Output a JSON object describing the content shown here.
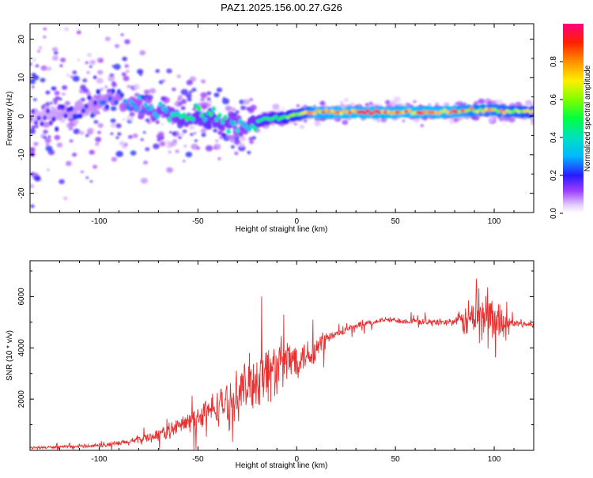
{
  "title": "PAZ1.2025.156.00.27.G26",
  "chart_data": [
    {
      "type": "heatmap",
      "xlabel": "Height of straight line (km)",
      "ylabel": "Frequency (Hz)",
      "xlim": [
        -135,
        120
      ],
      "ylim": [
        -25,
        24
      ],
      "xticks": [
        -100,
        -50,
        0,
        50,
        100
      ],
      "yticks": [
        -20,
        -10,
        0,
        10,
        20
      ],
      "colorbar": {
        "label": "Normalized spectral amplitude",
        "range": [
          0,
          1
        ],
        "ticks": [
          "0.0",
          "0.2",
          "0.4",
          "0.6",
          "0.8"
        ],
        "tick_values": [
          0,
          0.2,
          0.4,
          0.6,
          0.8
        ]
      },
      "ridge": {
        "x": [
          -135,
          -120,
          -105,
          -95,
          -85,
          -75,
          -65,
          -55,
          -45,
          -35,
          -28,
          -24,
          -18,
          -12,
          -6,
          0,
          5,
          10,
          30,
          60,
          80,
          90,
          100,
          110,
          120
        ],
        "freq": [
          0,
          0.5,
          2,
          4.5,
          3.5,
          1.5,
          1,
          0,
          -0.5,
          -1.5,
          -2.5,
          -2.5,
          -1,
          -0.5,
          -0.5,
          0.5,
          1,
          1,
          1,
          1,
          1.2,
          1.5,
          1.5,
          1.2,
          1.2
        ],
        "amplitude": [
          0.15,
          0.2,
          0.22,
          0.25,
          0.3,
          0.35,
          0.4,
          0.45,
          0.45,
          0.4,
          0.35,
          0.4,
          0.5,
          0.5,
          0.55,
          0.6,
          0.7,
          0.85,
          0.9,
          0.88,
          0.85,
          0.75,
          0.75,
          0.7,
          0.65
        ]
      }
    },
    {
      "type": "line",
      "xlabel": "Height of straight line (km)",
      "ylabel": "SNR (10 * v/v)",
      "xlim": [
        -135,
        120
      ],
      "ylim": [
        0,
        7400
      ],
      "xticks": [
        -100,
        -50,
        0,
        50,
        100
      ],
      "yticks": [
        2000,
        4000,
        6000
      ],
      "color": "#e83030",
      "envelope": {
        "x": [
          -135,
          -110,
          -95,
          -85,
          -75,
          -65,
          -55,
          -45,
          -35,
          -28,
          -22,
          -17,
          -12,
          -8,
          -5,
          0,
          5,
          10,
          15,
          25,
          35,
          45,
          55,
          70,
          85,
          90,
          95,
          100,
          105,
          110,
          120
        ],
        "snr": [
          100,
          150,
          220,
          320,
          500,
          750,
          1100,
          1500,
          1900,
          2300,
          2700,
          3000,
          3150,
          3300,
          3450,
          3600,
          3750,
          3900,
          4350,
          4700,
          4950,
          5100,
          5050,
          5000,
          5050,
          5200,
          5300,
          5150,
          5000,
          4950,
          4900
        ]
      },
      "noise": {
        "x": [
          -135,
          -110,
          -90,
          -75,
          -60,
          -50,
          -40,
          -30,
          -25,
          -20,
          -15,
          -10,
          -5,
          0,
          5,
          10,
          15,
          20,
          40,
          80,
          88,
          92,
          97,
          102,
          108,
          120
        ],
        "amplitude": [
          60,
          70,
          130,
          250,
          420,
          600,
          850,
          1100,
          1300,
          1500,
          1500,
          1350,
          1200,
          900,
          700,
          900,
          400,
          180,
          130,
          160,
          1100,
          1700,
          1500,
          1000,
          200,
          120
        ]
      }
    }
  ]
}
